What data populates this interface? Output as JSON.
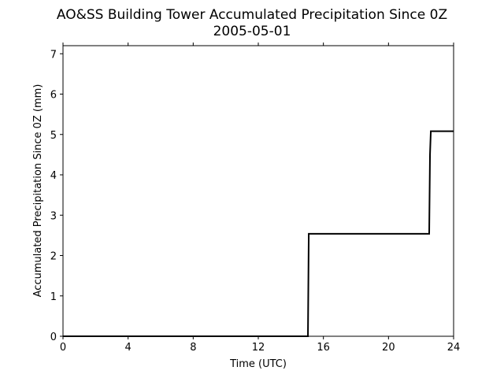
{
  "chart_data": {
    "type": "line",
    "title": "AO&SS Building Tower Accumulated Precipitation Since 0Z",
    "subtitle": "2005-05-01",
    "xlabel": "Time (UTC)",
    "ylabel": "Accumulated Precipitation Since 0Z (mm)",
    "xlim": [
      0,
      24
    ],
    "ylim": [
      0,
      7.2
    ],
    "xticks": [
      0,
      4,
      8,
      12,
      16,
      20,
      24
    ],
    "xtick_labels": [
      "0",
      "4",
      "8",
      "12",
      "16",
      "20",
      "24"
    ],
    "yticks": [
      0,
      1,
      2,
      3,
      4,
      5,
      6,
      7
    ],
    "ytick_labels": [
      "0",
      "1",
      "2",
      "3",
      "4",
      "5",
      "6",
      "7"
    ],
    "grid": false,
    "series": [
      {
        "color": "#000000",
        "x": [
          0,
          15.05,
          15.1,
          22.5,
          22.55,
          22.6,
          24
        ],
        "y": [
          0,
          0,
          2.54,
          2.54,
          4.5,
          5.08,
          5.08
        ]
      }
    ]
  }
}
